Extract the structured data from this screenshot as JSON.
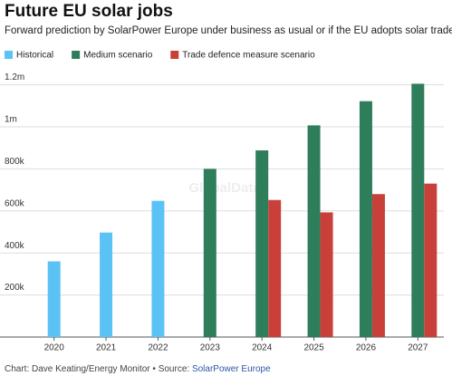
{
  "chart_data": {
    "type": "bar",
    "title": "Future EU solar jobs",
    "subtitle": "Forward prediction by SolarPower Europe under business as usual or if the EU adopts solar trade defence measures",
    "watermark": "GlobalData",
    "source": "Chart: Dave Keating/Energy Monitor • Source:",
    "source_link": "SolarPower Europe",
    "categories": [
      "2020",
      "2021",
      "2022",
      "2023",
      "2024",
      "2025",
      "2026",
      "2027"
    ],
    "series": [
      {
        "name": "Historical",
        "color": "#5bc2f5",
        "values": [
          360000,
          497000,
          648000,
          null,
          null,
          null,
          null,
          null
        ]
      },
      {
        "name": "Medium scenario",
        "color": "#2e7d5b",
        "values": [
          null,
          null,
          null,
          800000,
          888000,
          1007000,
          1122000,
          1205000
        ]
      },
      {
        "name": "Trade defence measure scenario",
        "color": "#c9403a",
        "values": [
          null,
          null,
          null,
          null,
          652000,
          593000,
          680000,
          730000
        ]
      }
    ],
    "ylim": [
      0,
      1250000
    ],
    "yticks": [
      {
        "value": 200000,
        "label": "200k"
      },
      {
        "value": 400000,
        "label": "400k"
      },
      {
        "value": 600000,
        "label": "600k"
      },
      {
        "value": 800000,
        "label": "800k"
      },
      {
        "value": 1000000,
        "label": "1m"
      },
      {
        "value": 1200000,
        "label": "1.2m"
      }
    ],
    "grid": true
  }
}
